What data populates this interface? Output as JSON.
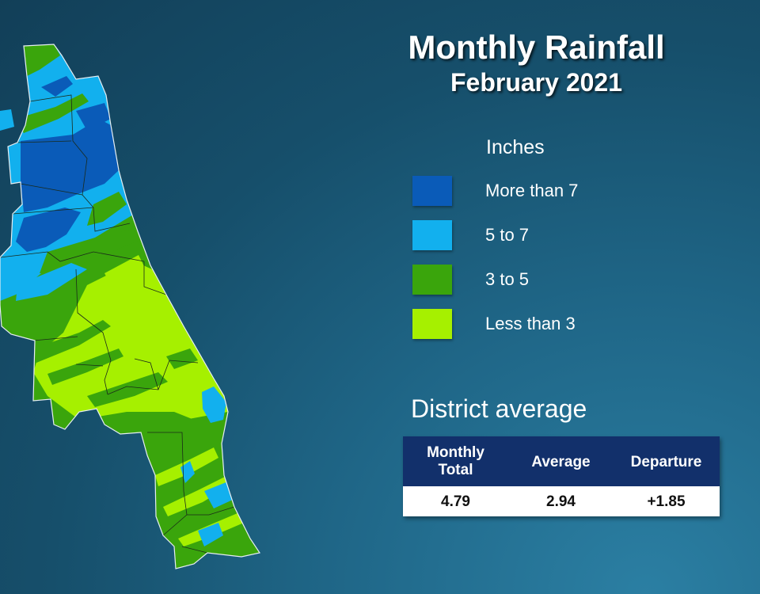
{
  "title": "Monthly Rainfall",
  "subtitle": "February 2021",
  "legend": {
    "title": "Inches",
    "items": [
      {
        "label": "More than 7",
        "color": "#0a5bb8"
      },
      {
        "label": "5 to 7",
        "color": "#12b0ee"
      },
      {
        "label": "3 to 5",
        "color": "#3aa50c"
      },
      {
        "label": "Less than 3",
        "color": "#a6f000"
      }
    ]
  },
  "district": {
    "title": "District average",
    "headers": [
      "Monthly\nTotal",
      "Average",
      "Departure"
    ],
    "values": [
      "4.79",
      "2.94",
      "+1.85"
    ],
    "header_color": "#12306b"
  },
  "map": {
    "description_colors": {
      "border": "#1a2a1a",
      "coast": "#e6eef2"
    }
  }
}
